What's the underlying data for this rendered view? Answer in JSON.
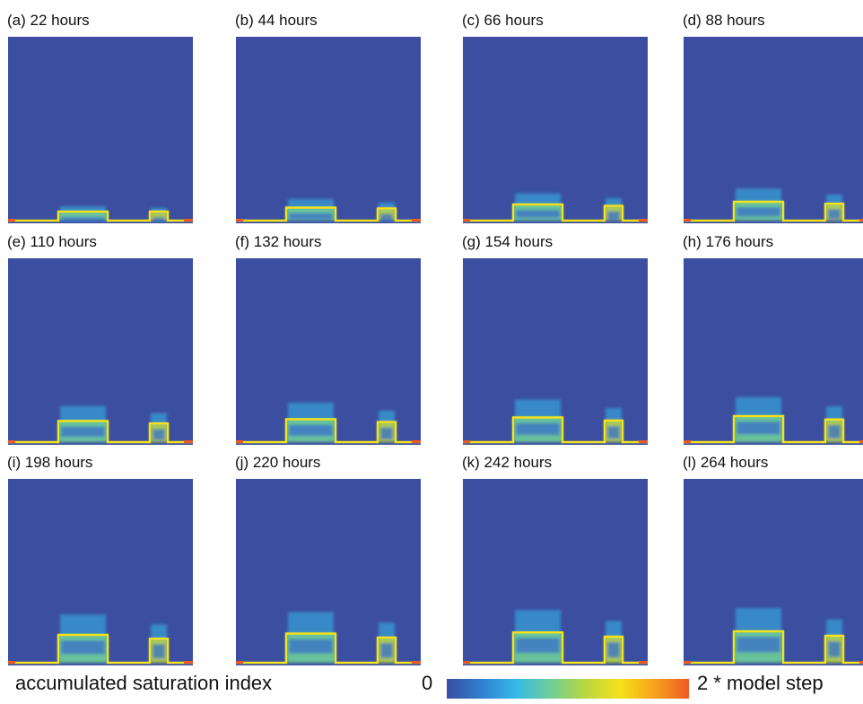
{
  "panels": [
    {
      "label": "(a) 22 hours",
      "progress": 0.0
    },
    {
      "label": "(b) 44 hours",
      "progress": 0.18
    },
    {
      "label": "(c) 66 hours",
      "progress": 0.32
    },
    {
      "label": "(d) 88 hours",
      "progress": 0.44
    },
    {
      "label": "(e) 110 hours",
      "progress": 0.54
    },
    {
      "label": "(f) 132 hours",
      "progress": 0.62
    },
    {
      "label": "(g) 154 hours",
      "progress": 0.7
    },
    {
      "label": "(h) 176 hours",
      "progress": 0.76
    },
    {
      "label": "(i) 198 hours",
      "progress": 0.84
    },
    {
      "label": "(j) 220 hours",
      "progress": 0.9
    },
    {
      "label": "(k) 242 hours",
      "progress": 0.95
    },
    {
      "label": "(l) 264 hours",
      "progress": 1.0
    }
  ],
  "colorbar": {
    "title": "accumulated saturation index",
    "min_label": "0",
    "max_label": "2 * model step",
    "colors": [
      "#3b4ea0",
      "#2f7fd0",
      "#35b9e8",
      "#6fcf97",
      "#b9d640",
      "#f4e21a",
      "#f7a21b",
      "#ee5a24"
    ]
  },
  "colors": {
    "background_field": "#3b4ea0"
  }
}
